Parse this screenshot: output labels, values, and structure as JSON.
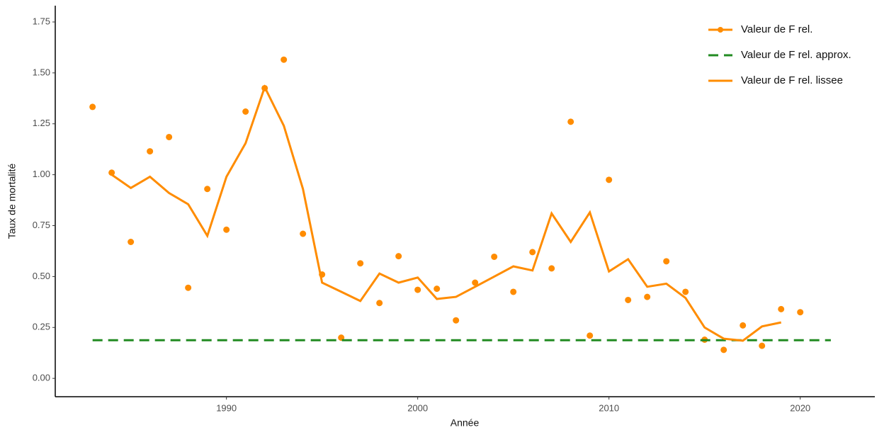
{
  "chart_data": {
    "type": "line",
    "x_label": "Année",
    "y_label": "Taux de mortalité",
    "xlim": [
      1981.05,
      2023.9
    ],
    "ylim": [
      -0.09,
      1.83
    ],
    "xticks": [
      1990,
      2000,
      2010,
      2020
    ],
    "yticks": [
      {
        "value": 0,
        "label": "0.00"
      },
      {
        "value": 0.25,
        "label": "0.25"
      },
      {
        "value": 0.5,
        "label": "0.50"
      },
      {
        "value": 0.75,
        "label": "0.75"
      },
      {
        "value": 1,
        "label": "1.00"
      },
      {
        "value": 1.25,
        "label": "1.25"
      },
      {
        "value": 1.5,
        "label": "1.50"
      },
      {
        "value": 1.75,
        "label": "1.75"
      }
    ],
    "grid": false,
    "legend": "top-right",
    "series": [
      {
        "name": "Valeur de F rel.",
        "color": "#ff8c00",
        "mode": "markers",
        "x": [
          1983,
          1984,
          1985,
          1986,
          1987,
          1988,
          1989,
          1990,
          1991,
          1992,
          1993,
          1994,
          1995,
          1996,
          1997,
          1998,
          1999,
          2000,
          2001,
          2002,
          2003,
          2004,
          2005,
          2006,
          2007,
          2008,
          2009,
          2010,
          2011,
          2012,
          2013,
          2014,
          2015,
          2016,
          2017,
          2018,
          2019,
          2020
        ],
        "values": [
          1.333,
          1.01,
          0.67,
          1.115,
          1.185,
          0.445,
          0.93,
          0.73,
          1.31,
          1.425,
          1.565,
          0.71,
          0.51,
          0.2,
          0.565,
          0.37,
          0.6,
          0.435,
          0.44,
          0.285,
          0.47,
          0.597,
          0.425,
          0.62,
          0.54,
          1.26,
          0.21,
          0.975,
          0.385,
          0.4,
          0.575,
          0.425,
          0.19,
          0.14,
          0.26,
          0.16,
          0.34,
          0.325
        ]
      },
      {
        "name": "Valeur de F rel. approx.",
        "color": "#228b22",
        "mode": "dashed",
        "x": [
          1983,
          2021.6
        ],
        "values": [
          0.1875,
          0.1875
        ]
      },
      {
        "name": "Valeur de F rel. lissee",
        "color": "#ff8c00",
        "mode": "line",
        "x": [
          1984,
          1985,
          1986,
          1987,
          1988,
          1989,
          1990,
          1991,
          1992,
          1993,
          1994,
          1995,
          1996,
          1997,
          1998,
          1999,
          2000,
          2001,
          2002,
          2003,
          2004,
          2005,
          2006,
          2007,
          2008,
          2009,
          2010,
          2011,
          2012,
          2013,
          2014,
          2015,
          2016,
          2017,
          2018,
          2019
        ],
        "values": [
          1.0,
          0.935,
          0.99,
          0.91,
          0.855,
          0.7,
          0.99,
          1.155,
          1.43,
          1.24,
          0.93,
          0.47,
          0.425,
          0.38,
          0.515,
          0.47,
          0.495,
          0.39,
          0.4,
          0.45,
          0.5,
          0.55,
          0.53,
          0.81,
          0.67,
          0.815,
          0.525,
          0.585,
          0.45,
          0.465,
          0.395,
          0.25,
          0.195,
          0.185,
          0.255,
          0.275
        ]
      }
    ]
  }
}
